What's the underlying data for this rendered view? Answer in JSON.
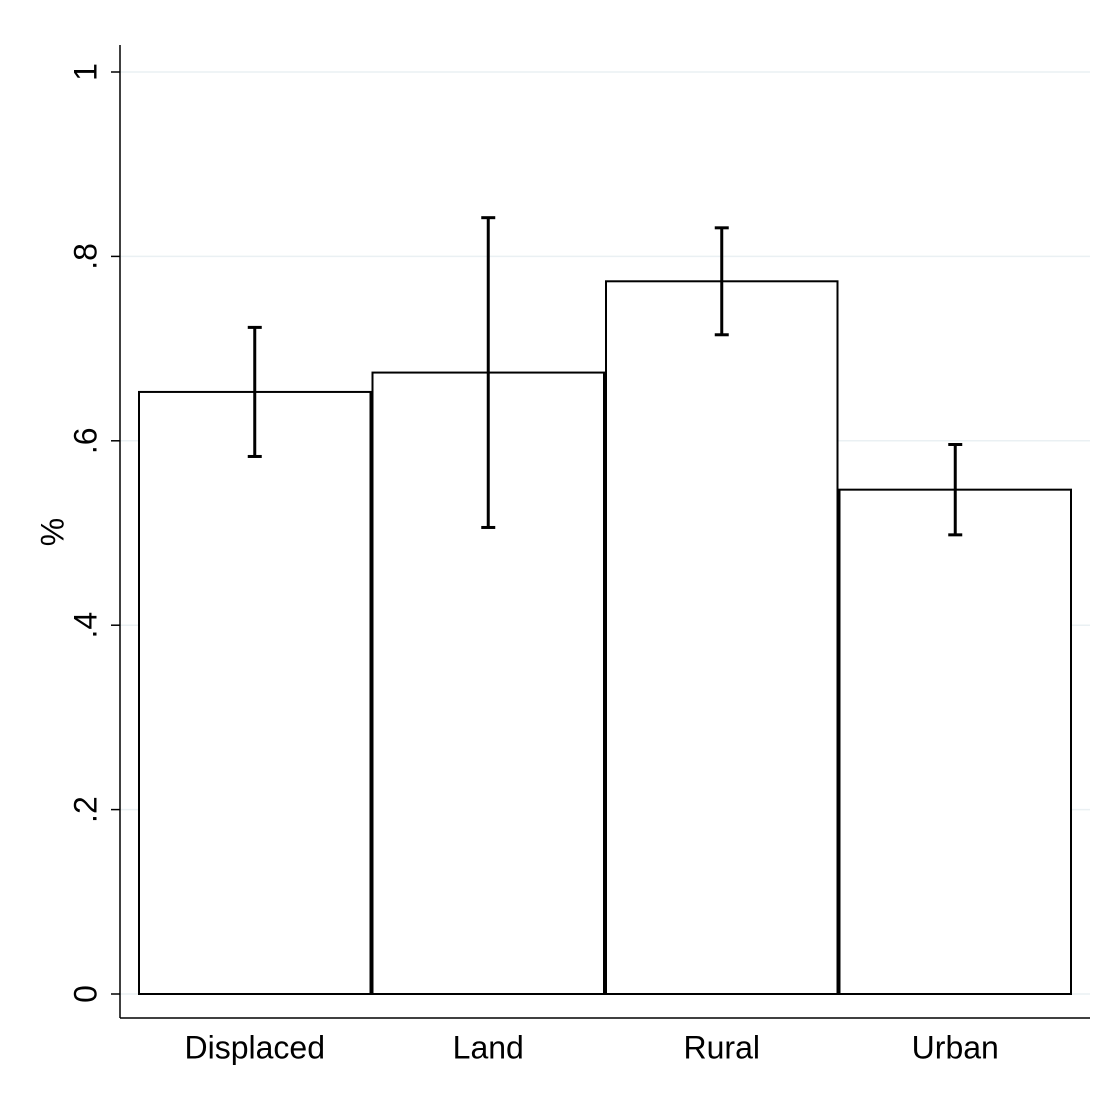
{
  "chart_data": {
    "type": "bar",
    "y_label": "%",
    "categories": [
      "Displaced",
      "Land",
      "Rural",
      "Urban"
    ],
    "values": [
      0.653,
      0.674,
      0.773,
      0.547
    ],
    "errors": [
      0.07,
      0.168,
      0.058,
      0.049
    ],
    "color": "#ffffff",
    "edge_color": "#000000",
    "ylim": [
      0,
      1
    ],
    "yticks": [
      0,
      {
        "value": 0.2,
        "label": ".2"
      },
      {
        "value": 0.4,
        "label": ".4"
      },
      {
        "value": 0.6,
        "label": ".6"
      },
      {
        "value": 0.8,
        "label": ".8"
      },
      1
    ],
    "grid": true
  }
}
